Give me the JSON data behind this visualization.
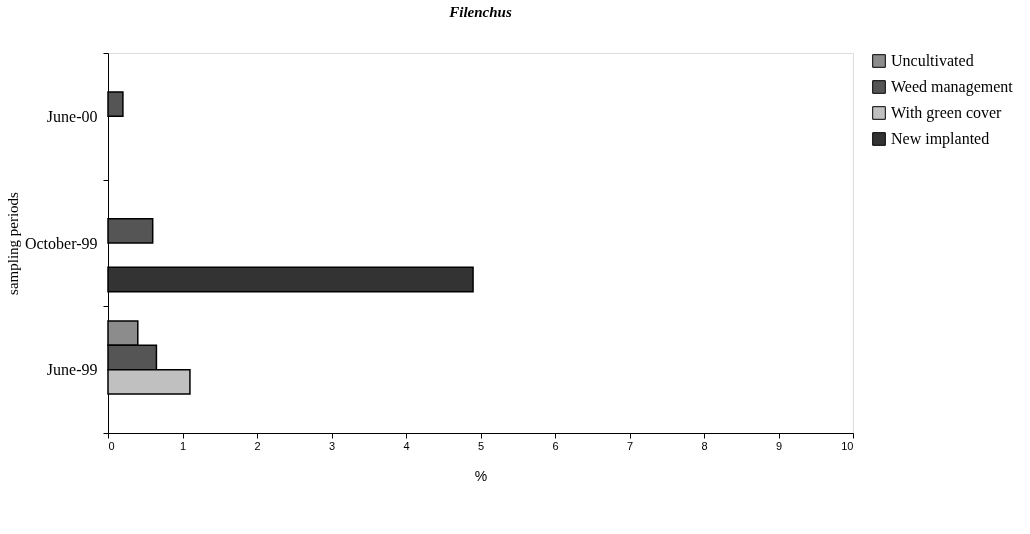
{
  "chart_data": {
    "type": "bar",
    "orientation": "horizontal",
    "title": "Filenchus",
    "xlabel": "%",
    "ylabel": "sampling periods",
    "categories": [
      "June-00",
      "October-99",
      "June-99"
    ],
    "series": [
      {
        "name": "Uncultivated",
        "color": "#8c8c8c",
        "values": [
          null,
          null,
          0.4
        ]
      },
      {
        "name": "Weed management",
        "color": "#555555",
        "values": [
          0.2,
          0.6,
          0.65
        ]
      },
      {
        "name": "With green cover",
        "color": "#c0c0c0",
        "values": [
          null,
          null,
          1.1
        ]
      },
      {
        "name": "New implanted",
        "color": "#333333",
        "values": [
          null,
          4.9,
          null
        ]
      }
    ],
    "xlim": [
      0,
      10
    ],
    "xticks": [
      0,
      1,
      2,
      3,
      4,
      5,
      6,
      7,
      8,
      9,
      10
    ],
    "grid": false,
    "legend": "top right"
  }
}
